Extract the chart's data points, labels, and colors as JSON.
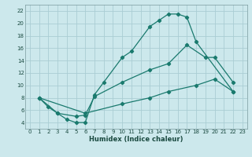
{
  "xlabel": "Humidex (Indice chaleur)",
  "bg_color": "#cce8ec",
  "grid_color": "#aacdd4",
  "line_color": "#1a7a6e",
  "xlim": [
    -0.5,
    23.5
  ],
  "ylim": [
    3,
    23
  ],
  "xticks": [
    0,
    1,
    2,
    3,
    4,
    5,
    6,
    7,
    8,
    9,
    10,
    11,
    12,
    13,
    14,
    15,
    16,
    17,
    18,
    19,
    20,
    21,
    22,
    23
  ],
  "yticks": [
    4,
    6,
    8,
    10,
    12,
    14,
    16,
    18,
    20,
    22
  ],
  "line1_x": [
    1,
    2,
    3,
    4,
    5,
    6,
    7,
    8,
    10,
    11,
    13,
    14,
    15,
    16,
    17,
    18,
    22
  ],
  "line1_y": [
    8,
    6.5,
    5.5,
    4.5,
    4.0,
    4.0,
    8.5,
    10.5,
    14.5,
    15.5,
    19.5,
    20.5,
    21.5,
    21.5,
    21.0,
    17.0,
    9.0
  ],
  "line2_x": [
    1,
    3,
    5,
    6,
    7,
    10,
    13,
    15,
    17,
    19,
    20,
    22
  ],
  "line2_y": [
    8,
    5.5,
    5.0,
    5.2,
    8.2,
    10.5,
    12.5,
    13.5,
    16.5,
    14.5,
    14.5,
    10.5
  ],
  "line3_x": [
    1,
    6,
    10,
    13,
    15,
    18,
    20,
    22
  ],
  "line3_y": [
    8,
    5.5,
    7.0,
    8.0,
    9.0,
    10.0,
    11.0,
    9.0
  ]
}
